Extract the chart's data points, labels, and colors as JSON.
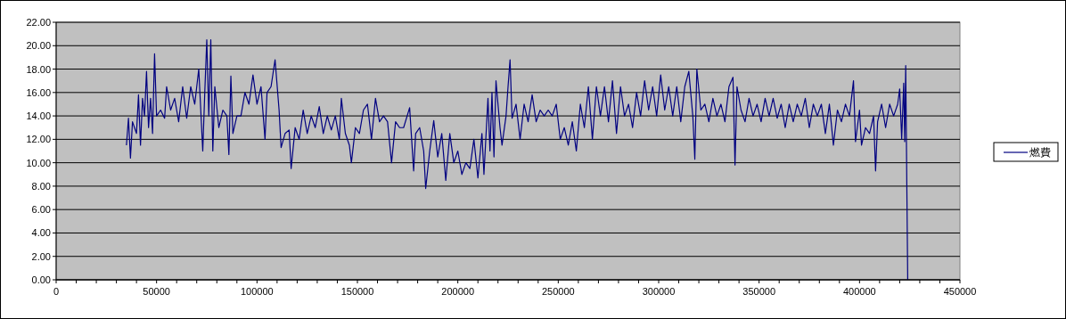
{
  "chart_data": {
    "type": "line",
    "legend": "right",
    "grid": "y",
    "marker": "none",
    "line_style": "solid",
    "xlim": [
      0,
      450000
    ],
    "xticks": [
      0,
      {
        "value": 10000,
        "label": null
      },
      {
        "value": 20000,
        "label": null
      },
      {
        "value": 30000,
        "label": null
      },
      {
        "value": 40000,
        "label": null
      },
      50000,
      {
        "value": 60000,
        "label": null
      },
      {
        "value": 70000,
        "label": null
      },
      {
        "value": 80000,
        "label": null
      },
      {
        "value": 90000,
        "label": null
      },
      100000,
      {
        "value": 110000,
        "label": null
      },
      {
        "value": 120000,
        "label": null
      },
      {
        "value": 130000,
        "label": null
      },
      {
        "value": 140000,
        "label": null
      },
      150000,
      {
        "value": 160000,
        "label": null
      },
      {
        "value": 170000,
        "label": null
      },
      {
        "value": 180000,
        "label": null
      },
      {
        "value": 190000,
        "label": null
      },
      200000,
      {
        "value": 210000,
        "label": null
      },
      {
        "value": 220000,
        "label": null
      },
      {
        "value": 230000,
        "label": null
      },
      {
        "value": 240000,
        "label": null
      },
      250000,
      {
        "value": 260000,
        "label": null
      },
      {
        "value": 270000,
        "label": null
      },
      {
        "value": 280000,
        "label": null
      },
      {
        "value": 290000,
        "label": null
      },
      300000,
      {
        "value": 310000,
        "label": null
      },
      {
        "value": 320000,
        "label": null
      },
      {
        "value": 330000,
        "label": null
      },
      {
        "value": 340000,
        "label": null
      },
      350000,
      {
        "value": 360000,
        "label": null
      },
      {
        "value": 370000,
        "label": null
      },
      {
        "value": 380000,
        "label": null
      },
      {
        "value": 390000,
        "label": null
      },
      400000,
      {
        "value": 410000,
        "label": null
      },
      {
        "value": 420000,
        "label": null
      },
      {
        "value": 430000,
        "label": null
      },
      {
        "value": 440000,
        "label": null
      },
      450000
    ],
    "ylim": [
      0,
      22
    ],
    "yticks": [
      {
        "value": 0,
        "label": "0.00"
      },
      {
        "value": 2,
        "label": "2.00"
      },
      {
        "value": 4,
        "label": "4.00"
      },
      {
        "value": 6,
        "label": "6.00"
      },
      {
        "value": 8,
        "label": "8.00"
      },
      {
        "value": 10,
        "label": "10.00"
      },
      {
        "value": 12,
        "label": "12.00"
      },
      {
        "value": 14,
        "label": "14.00"
      },
      {
        "value": 16,
        "label": "16.00"
      },
      {
        "value": 18,
        "label": "18.00"
      },
      {
        "value": 20,
        "label": "20.00"
      },
      {
        "value": 22,
        "label": "22.00"
      }
    ],
    "series": [
      {
        "name": "燃費",
        "color": "#000080",
        "x": [
          35000,
          36000,
          37000,
          38000,
          40000,
          41000,
          42000,
          43000,
          44000,
          45000,
          46000,
          47000,
          48000,
          49000,
          50000,
          52000,
          54000,
          55000,
          57000,
          59000,
          61000,
          63000,
          65000,
          67000,
          69000,
          71000,
          73000,
          74000,
          75000,
          76000,
          77000,
          78000,
          79000,
          81000,
          83000,
          85000,
          86000,
          87000,
          88000,
          90000,
          92000,
          94000,
          96000,
          98000,
          100000,
          102000,
          104000,
          105000,
          107000,
          109000,
          111000,
          112000,
          114000,
          116000,
          117000,
          119000,
          121000,
          123000,
          125000,
          127000,
          129000,
          131000,
          133000,
          135000,
          137000,
          139000,
          141000,
          142000,
          144000,
          146000,
          147000,
          149000,
          151000,
          153000,
          155000,
          157000,
          159000,
          161000,
          163000,
          165000,
          167000,
          169000,
          171000,
          173000,
          176000,
          178000,
          179000,
          181000,
          183000,
          184000,
          186000,
          188000,
          190000,
          192000,
          194000,
          196000,
          198000,
          200000,
          202000,
          204000,
          206000,
          208000,
          210000,
          212000,
          213000,
          215000,
          216000,
          217000,
          218000,
          219000,
          221000,
          222000,
          224000,
          225000,
          226000,
          227000,
          229000,
          231000,
          233000,
          235000,
          237000,
          239000,
          241000,
          243000,
          245000,
          247000,
          249000,
          251000,
          253000,
          255000,
          257000,
          259000,
          261000,
          263000,
          265000,
          267000,
          269000,
          271000,
          273000,
          275000,
          277000,
          279000,
          281000,
          283000,
          285000,
          287000,
          289000,
          291000,
          293000,
          295000,
          297000,
          299000,
          301000,
          303000,
          305000,
          307000,
          309000,
          311000,
          313000,
          315000,
          317000,
          318000,
          319000,
          321000,
          323000,
          325000,
          327000,
          329000,
          331000,
          333000,
          335000,
          337000,
          338000,
          339000,
          341000,
          343000,
          345000,
          347000,
          349000,
          351000,
          353000,
          355000,
          357000,
          359000,
          361000,
          363000,
          365000,
          367000,
          369000,
          371000,
          373000,
          375000,
          377000,
          379000,
          381000,
          383000,
          385000,
          387000,
          389000,
          391000,
          393000,
          395000,
          397000,
          398000,
          400000,
          401000,
          403000,
          405000,
          407000,
          408000,
          409000,
          411000,
          413000,
          415000,
          417000,
          419000,
          420000,
          421000,
          422000,
          422500,
          423000,
          424000
        ],
        "values": [
          11.5,
          13.8,
          10.4,
          13.5,
          12.5,
          15.8,
          11.5,
          15.5,
          14.0,
          17.8,
          13.0,
          15.5,
          12.5,
          19.3,
          14.0,
          14.5,
          13.8,
          16.5,
          14.5,
          15.5,
          13.5,
          16.5,
          13.8,
          16.5,
          15.0,
          18.0,
          11.0,
          16.0,
          20.5,
          14.0,
          20.5,
          11.0,
          16.5,
          13.0,
          14.5,
          14.0,
          10.7,
          17.4,
          12.5,
          14.0,
          14.0,
          16.0,
          15.0,
          17.5,
          15.0,
          16.5,
          12.0,
          16.0,
          16.5,
          18.8,
          14.5,
          11.3,
          12.5,
          12.8,
          9.5,
          13.0,
          12.0,
          14.5,
          12.5,
          14.0,
          13.0,
          14.8,
          12.5,
          14.0,
          12.8,
          14.0,
          12.0,
          15.5,
          12.5,
          11.5,
          10.0,
          13.0,
          12.5,
          14.5,
          15.0,
          12.0,
          15.5,
          13.5,
          14.0,
          13.5,
          10.0,
          13.5,
          13.0,
          13.0,
          14.7,
          9.3,
          12.5,
          13.0,
          11.0,
          7.8,
          11.0,
          13.6,
          10.5,
          12.5,
          8.5,
          12.5,
          10.0,
          11.0,
          9.0,
          10.0,
          9.5,
          12.0,
          8.7,
          12.5,
          9.0,
          15.5,
          11.0,
          16.0,
          10.5,
          17.0,
          13.0,
          11.5,
          14.0,
          16.5,
          18.8,
          13.8,
          15.0,
          12.0,
          15.0,
          13.5,
          15.8,
          13.5,
          14.5,
          14.0,
          14.5,
          14.0,
          15.0,
          12.0,
          13.0,
          11.5,
          13.5,
          11.0,
          15.0,
          13.0,
          16.5,
          12.0,
          16.5,
          14.0,
          16.5,
          13.5,
          17.0,
          12.5,
          16.5,
          14.0,
          15.0,
          13.0,
          16.0,
          14.0,
          17.0,
          14.5,
          16.5,
          14.0,
          17.5,
          14.5,
          16.5,
          14.0,
          16.5,
          13.5,
          16.5,
          17.8,
          14.0,
          10.3,
          18.0,
          14.5,
          15.0,
          13.5,
          15.5,
          14.0,
          15.0,
          13.5,
          16.5,
          17.3,
          9.8,
          16.5,
          14.5,
          13.5,
          15.5,
          14.0,
          15.0,
          13.5,
          15.5,
          14.0,
          15.5,
          13.8,
          15.0,
          13.0,
          15.0,
          13.5,
          15.0,
          14.0,
          15.5,
          13.0,
          15.0,
          14.0,
          15.0,
          12.5,
          15.0,
          11.5,
          14.5,
          13.5,
          15.0,
          14.0,
          17.0,
          11.8,
          14.5,
          11.5,
          13.0,
          12.5,
          14.0,
          9.3,
          13.5,
          15.0,
          13.0,
          15.0,
          14.0,
          15.0,
          16.3,
          12.0,
          16.8,
          11.8,
          18.3,
          0
        ]
      }
    ]
  }
}
